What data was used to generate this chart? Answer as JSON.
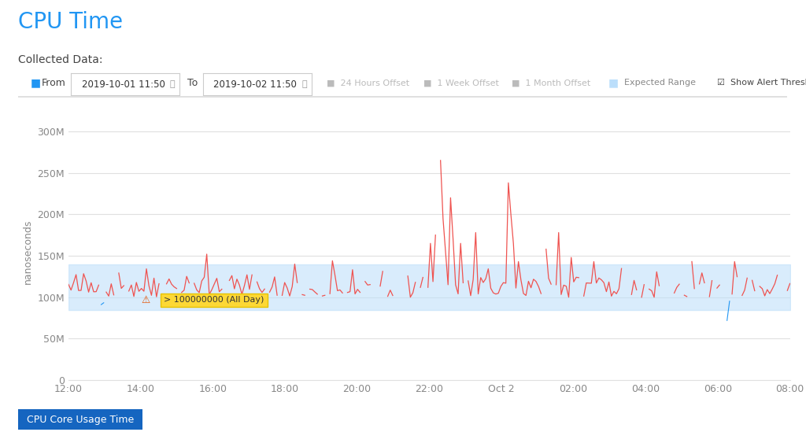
{
  "title": "CPU Time",
  "subtitle": "Collected Data:",
  "ylabel": "nanoseconds",
  "xlabel_ticks": [
    "12:00",
    "14:00",
    "16:00",
    "18:00",
    "20:00",
    "22:00",
    "Oct 2",
    "02:00",
    "04:00",
    "06:00",
    "08:00"
  ],
  "yticks": [
    0,
    50000000,
    100000000,
    150000000,
    200000000,
    250000000,
    300000000
  ],
  "ytick_labels": [
    "0",
    "50M",
    "100M",
    "150M",
    "200M",
    "250M",
    "300M"
  ],
  "ylim": [
    0,
    310000000
  ],
  "title_color": "#2196F3",
  "title_fontsize": 20,
  "subtitle_fontsize": 12,
  "background_color": "#ffffff",
  "plot_bg_color": "#ffffff",
  "expected_range_color": "#BBDEFB",
  "expected_range_alpha": 0.55,
  "expected_range_lower": 85000000,
  "expected_range_upper": 140000000,
  "alert_threshold": 100000000,
  "normal_line_color": "#2196F3",
  "alert_line_color": "#EF5350",
  "grid_color": "#E0E0E0",
  "annotation_bg": "#FDD835",
  "annotation_text": "> 100000000 (All Day)",
  "from_date": "2019-10-01 11:50",
  "to_date": "2019-10-02 11:50",
  "footer_label": "CPU Core Usage Time",
  "footer_bg": "#1565C0",
  "footer_text_color": "#ffffff"
}
